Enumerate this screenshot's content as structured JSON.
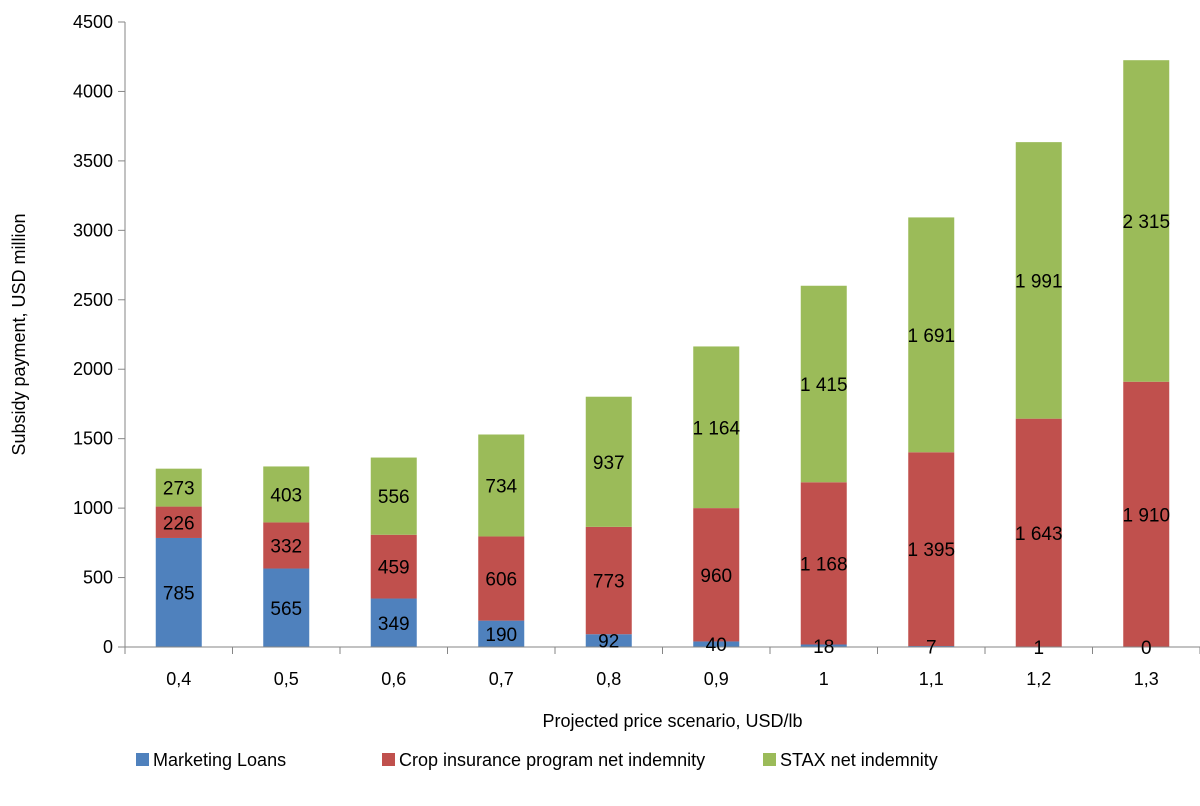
{
  "chart_data": {
    "type": "bar",
    "stacked": true,
    "categories": [
      "0,4",
      "0,5",
      "0,6",
      "0,7",
      "0,8",
      "0,9",
      "1",
      "1,1",
      "1,2",
      "1,3"
    ],
    "series": [
      {
        "name": "Marketing Loans",
        "color": "#4f81bd",
        "values": [
          785,
          565,
          349,
          190,
          92,
          40,
          18,
          7,
          1,
          0
        ],
        "labels": [
          "785",
          "565",
          "349",
          "190",
          "92",
          "40",
          "18",
          "7",
          "1",
          "0"
        ]
      },
      {
        "name": "Crop insurance program net indemnity",
        "color": "#c0504d",
        "values": [
          226,
          332,
          459,
          606,
          773,
          960,
          1168,
          1395,
          1643,
          1910
        ],
        "labels": [
          "226",
          "332",
          "459",
          "606",
          "773",
          "960",
          "1 168",
          "1 395",
          "1 643",
          "1 910"
        ]
      },
      {
        "name": "STAX net  indemnity",
        "color": "#9bbb59",
        "values": [
          273,
          403,
          556,
          734,
          937,
          1164,
          1415,
          1691,
          1991,
          2315
        ],
        "labels": [
          "273",
          "403",
          "556",
          "734",
          "937",
          "1 164",
          "1 415",
          "1 691",
          "1 991",
          "2 315"
        ]
      }
    ],
    "xlabel": "Projected price scenario, USD/lb",
    "ylabel": "Subsidy payment, USD million",
    "ylim": [
      0,
      4500
    ],
    "yticks": [
      0,
      500,
      1000,
      1500,
      2000,
      2500,
      3000,
      3500,
      4000,
      4500
    ],
    "grid": false,
    "legend_position": "bottom"
  }
}
